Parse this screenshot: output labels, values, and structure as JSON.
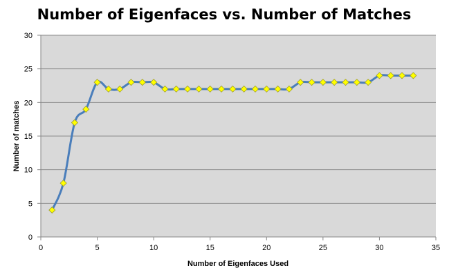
{
  "chart_data": {
    "type": "line",
    "title": "Number of Eigenfaces vs. Number of Matches",
    "xlabel": "Number of Eigenfaces  Used",
    "ylabel": "Number of matches",
    "xlim": [
      0,
      35
    ],
    "ylim": [
      0,
      30
    ],
    "xticks": [
      0,
      5,
      10,
      15,
      20,
      25,
      30,
      35
    ],
    "yticks": [
      0,
      5,
      10,
      15,
      20,
      25,
      30
    ],
    "grid": true,
    "legend": "none",
    "smoothed": true,
    "series": [
      {
        "x": [
          1,
          2,
          3,
          4,
          5,
          6,
          7,
          8,
          9,
          10,
          11,
          12,
          13,
          14,
          15,
          16,
          17,
          18,
          19,
          20,
          21,
          22,
          23,
          24,
          25,
          26,
          27,
          28,
          29,
          30,
          31,
          32,
          33
        ],
        "values": [
          4,
          8,
          17,
          19,
          23,
          22,
          22,
          23,
          23,
          23,
          22,
          22,
          22,
          22,
          22,
          22,
          22,
          22,
          22,
          22,
          22,
          22,
          23,
          23,
          23,
          23,
          23,
          23,
          23,
          24,
          24,
          24,
          24
        ]
      }
    ]
  },
  "colors": {
    "plot_background": "#d9d9d9",
    "gridline": "#8c8c8c",
    "line": "#4a7ebb",
    "marker_fill": "#ffff00",
    "marker_stroke": "#9a9a30",
    "axis": "#868686"
  },
  "marker_shape": "diamond"
}
